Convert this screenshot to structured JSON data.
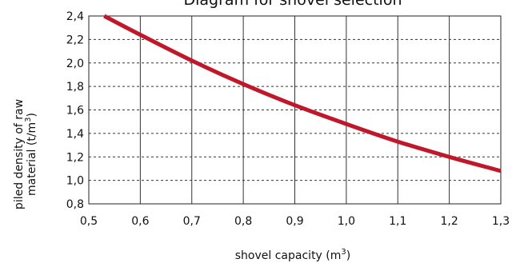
{
  "chart_data": {
    "type": "line",
    "title": "Diagram for shovel selection",
    "xlabel": "shovel capacity (m",
    "xlabel_sup": "3",
    "xlabel_end": ")",
    "ylabel_line1": "piled density of raw",
    "ylabel_line2": "material (t/m",
    "ylabel_sup": "3",
    "ylabel_end": ")",
    "xlim": [
      0.5,
      1.3
    ],
    "ylim": [
      0.8,
      2.4
    ],
    "x_ticks": [
      0.5,
      0.6,
      0.7,
      0.8,
      0.9,
      1.0,
      1.1,
      1.2,
      1.3
    ],
    "x_tick_labels": [
      "0,5",
      "0,6",
      "0,7",
      "0,8",
      "0,9",
      "1,0",
      "1,1",
      "1,2",
      "1,3"
    ],
    "y_ticks": [
      0.8,
      1.0,
      1.2,
      1.4,
      1.6,
      1.8,
      2.0,
      2.2,
      2.4
    ],
    "y_tick_labels": [
      "0,8",
      "1,0",
      "1,2",
      "1,4",
      "1,6",
      "1,8",
      "2,0",
      "2,2",
      "2,4"
    ],
    "grid": true,
    "series": [
      {
        "color": "#c0182a",
        "x": [
          0.53,
          0.6,
          0.7,
          0.8,
          0.9,
          1.0,
          1.1,
          1.2,
          1.3
        ],
        "y": [
          2.4,
          2.24,
          2.02,
          1.82,
          1.64,
          1.48,
          1.33,
          1.2,
          1.08
        ]
      }
    ]
  }
}
